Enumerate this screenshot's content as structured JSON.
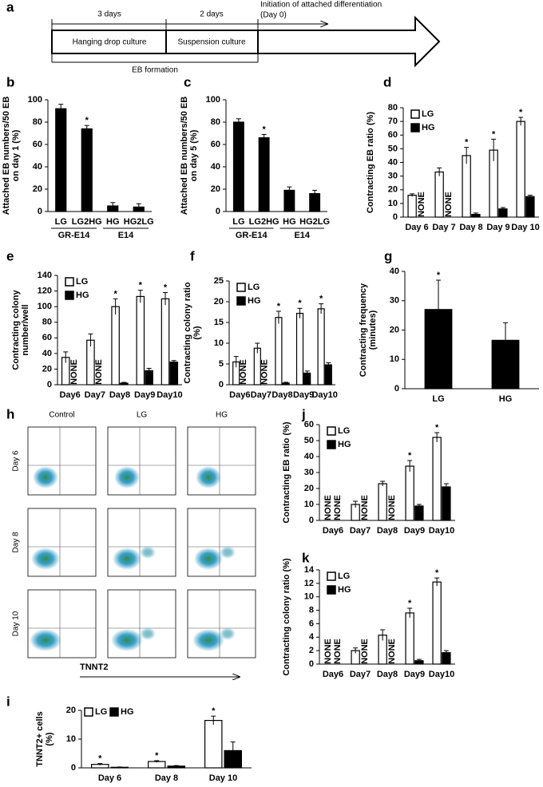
{
  "panel_a": {
    "panel": "a",
    "durations": [
      "3 days",
      "2 days"
    ],
    "initiation": [
      "Initiation of attached differentiation",
      "(Day 0)"
    ],
    "stages": [
      "Hanging drop culture",
      "Suspension culture"
    ],
    "caption": "EB formation"
  },
  "panel_h": {
    "panel": "h",
    "columns": [
      "Control",
      "LG",
      "HG"
    ],
    "rows": [
      "Day 6",
      "Day 8",
      "Day 10"
    ],
    "axis": "TNNT2"
  },
  "chart_data": [
    {
      "panel": "b",
      "type": "bar",
      "ylabel": [
        "Attached EB numbers/50 EB",
        "on day 1 (%)"
      ],
      "categories": [
        "LG",
        "LG2HG",
        "HG",
        "HG2LG"
      ],
      "groups": [
        {
          "name": "GR-E14",
          "size": 2
        },
        {
          "name": "E14",
          "size": 2
        }
      ],
      "values": [
        92,
        74,
        5,
        4
      ],
      "errors": [
        4,
        3,
        3,
        3
      ],
      "stars": [
        null,
        "*",
        null,
        null
      ],
      "color": "#000000",
      "ylim": [
        0,
        100
      ],
      "yticks": [
        0,
        20,
        40,
        60,
        80,
        100
      ]
    },
    {
      "panel": "c",
      "type": "bar",
      "ylabel": [
        "Attached EB numbers/50 EB",
        "on day 5 (%)"
      ],
      "categories": [
        "LG",
        "LG2HG",
        "HG",
        "HG2LG"
      ],
      "groups": [
        {
          "name": "GR-E14",
          "size": 2
        },
        {
          "name": "E14",
          "size": 2
        }
      ],
      "values": [
        80,
        66,
        19,
        16
      ],
      "errors": [
        3,
        3,
        3,
        3
      ],
      "stars": [
        null,
        "*",
        null,
        null
      ],
      "color": "#000000",
      "ylim": [
        0,
        100
      ],
      "yticks": [
        0,
        20,
        40,
        60,
        80,
        100
      ]
    },
    {
      "panel": "d",
      "type": "bar",
      "ylabel": [
        "Contracting EB ratio (%)"
      ],
      "categories": [
        "Day 6",
        "Day 7",
        "Day 8",
        "Day 9",
        "Day 10"
      ],
      "legend": "upper left",
      "series": [
        {
          "name": "LG",
          "color": "#ffffff",
          "values": [
            16,
            33,
            45,
            49,
            70
          ],
          "errors": [
            1,
            3,
            6,
            8,
            3
          ],
          "stars": [
            null,
            null,
            "*",
            "*",
            "*"
          ]
        },
        {
          "name": "HG",
          "color": "#000000",
          "values": [
            null,
            null,
            2,
            6,
            15
          ],
          "errors": [
            null,
            null,
            1,
            1,
            1
          ],
          "labels": [
            "NONE",
            "NONE",
            null,
            null,
            null
          ]
        }
      ],
      "ylim": [
        0,
        80
      ],
      "yticks": [
        0,
        10,
        20,
        30,
        40,
        50,
        60,
        70,
        80
      ]
    },
    {
      "panel": "e",
      "type": "bar",
      "ylabel": [
        "Contracting colony",
        "number/well"
      ],
      "categories": [
        "Day6",
        "Day7",
        "Day8",
        "Day9",
        "Day10"
      ],
      "legend": "upper left",
      "series": [
        {
          "name": "LG",
          "color": "#ffffff",
          "values": [
            35,
            57,
            100,
            113,
            110
          ],
          "errors": [
            7,
            8,
            10,
            8,
            8
          ],
          "stars": [
            null,
            null,
            "*",
            "*",
            "*"
          ]
        },
        {
          "name": "HG",
          "color": "#000000",
          "values": [
            null,
            null,
            2,
            18,
            29
          ],
          "errors": [
            null,
            null,
            1,
            3,
            2
          ],
          "labels": [
            "NONE",
            "NONE",
            null,
            null,
            null
          ]
        }
      ],
      "ylim": [
        0,
        140
      ],
      "yticks": [
        0,
        20,
        40,
        60,
        80,
        100,
        120,
        140
      ]
    },
    {
      "panel": "f",
      "type": "bar",
      "ylabel": [
        "Contracting colony ratio",
        "(%)"
      ],
      "categories": [
        "Day6",
        "Day7",
        "Day8",
        "Day9",
        "Day10"
      ],
      "legend": "upper left",
      "series": [
        {
          "name": "LG",
          "color": "#ffffff",
          "values": [
            5.5,
            8.8,
            16.2,
            17.2,
            18.3
          ],
          "errors": [
            1.3,
            1.2,
            1.5,
            1.2,
            1.2
          ],
          "stars": [
            null,
            null,
            "*",
            "*",
            "*"
          ]
        },
        {
          "name": "HG",
          "color": "#000000",
          "values": [
            null,
            null,
            0.4,
            2.8,
            4.8
          ],
          "errors": [
            null,
            null,
            0.2,
            0.5,
            0.5
          ],
          "labels": [
            "NONE",
            "NONE",
            null,
            null,
            null
          ]
        }
      ],
      "ylim": [
        0,
        25
      ],
      "yticks": [
        0,
        5,
        10,
        15,
        20,
        25
      ]
    },
    {
      "panel": "g",
      "type": "bar",
      "ylabel": [
        "Contracting frequency",
        "(minutes)"
      ],
      "categories": [
        "LG",
        "HG"
      ],
      "values": [
        27,
        16.5
      ],
      "errors": [
        10,
        6
      ],
      "stars": [
        "*",
        null
      ],
      "color": "#000000",
      "ylim": [
        0,
        40
      ],
      "yticks": [
        0,
        10,
        20,
        30,
        40
      ]
    },
    {
      "panel": "i",
      "type": "bar",
      "ylabel": [
        "TNNT2+ cells",
        "(%)"
      ],
      "categories": [
        "Day 6",
        "Day 8",
        "Day 10"
      ],
      "legend": "top",
      "series": [
        {
          "name": "LG",
          "color": "#ffffff",
          "values": [
            1.2,
            2.2,
            16.5
          ],
          "errors": [
            0.3,
            0.3,
            1.5
          ],
          "stars": [
            "*",
            "*",
            "*"
          ]
        },
        {
          "name": "HG",
          "color": "#000000",
          "values": [
            0.2,
            0.6,
            6
          ],
          "errors": [
            0.1,
            0.2,
            3
          ]
        }
      ],
      "ylim": [
        0,
        20
      ],
      "yticks": [
        0,
        10,
        20
      ]
    },
    {
      "panel": "j",
      "type": "bar",
      "ylabel": [
        "Contracting EB ratio (%)"
      ],
      "categories": [
        "Day6",
        "Day7",
        "Day8",
        "Day9",
        "Day10"
      ],
      "legend": "upper left",
      "series": [
        {
          "name": "LG",
          "color": "#ffffff",
          "values": [
            null,
            10,
            23,
            34,
            52
          ],
          "errors": [
            null,
            2,
            1.5,
            3.5,
            3
          ],
          "stars": [
            null,
            null,
            null,
            "*",
            "*"
          ],
          "labels": [
            "NONE",
            null,
            null,
            null,
            null
          ]
        },
        {
          "name": "HG",
          "color": "#000000",
          "values": [
            null,
            null,
            null,
            9,
            21
          ],
          "errors": [
            null,
            null,
            null,
            1,
            2
          ],
          "labels": [
            "NONE",
            "NONE",
            "NONE",
            null,
            null
          ]
        }
      ],
      "ylim": [
        0,
        60
      ],
      "yticks": [
        0,
        10,
        20,
        30,
        40,
        50,
        60
      ]
    },
    {
      "panel": "k",
      "type": "bar",
      "ylabel": [
        "Contracting colony ratio (%)"
      ],
      "categories": [
        "Day6",
        "Day7",
        "Day8",
        "Day9",
        "Day10"
      ],
      "legend": "upper left",
      "series": [
        {
          "name": "LG",
          "color": "#ffffff",
          "values": [
            null,
            2,
            4.3,
            7.6,
            12.2
          ],
          "errors": [
            null,
            0.4,
            0.8,
            0.7,
            0.6
          ],
          "stars": [
            null,
            null,
            null,
            "*",
            "*"
          ],
          "labels": [
            "NONE",
            null,
            null,
            null,
            null
          ]
        },
        {
          "name": "HG",
          "color": "#000000",
          "values": [
            null,
            null,
            null,
            0.5,
            1.7
          ],
          "errors": [
            null,
            null,
            null,
            0.2,
            0.3
          ],
          "labels": [
            "NONE",
            "NONE",
            "NONE",
            null,
            null
          ]
        }
      ],
      "ylim": [
        0,
        14
      ],
      "yticks": [
        0,
        2,
        4,
        6,
        8,
        10,
        12,
        14
      ]
    }
  ]
}
